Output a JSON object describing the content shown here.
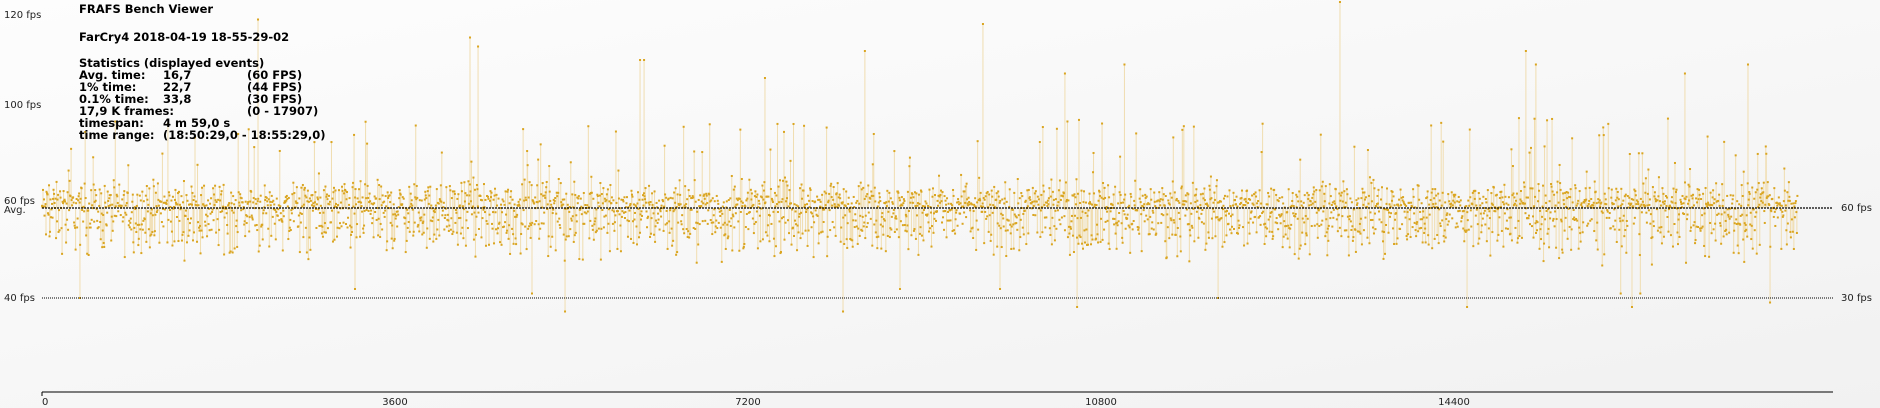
{
  "title": "FRAFS Bench Viewer",
  "run_name": "FarCry4 2018-04-19 18-55-29-02",
  "stats": {
    "heading": "Statistics (displayed events)",
    "rows": [
      {
        "label": "Avg. time:",
        "value": "16,7",
        "extra": "(60 FPS)"
      },
      {
        "label": "1% time:",
        "value": "22,7",
        "extra": "(44 FPS)"
      },
      {
        "label": "0.1% time:",
        "value": "33,8",
        "extra": "(30 FPS)"
      },
      {
        "label": "17,9 K frames:",
        "value": "",
        "extra": "(0 - 17907)"
      },
      {
        "label": "timespan:",
        "value": "4 m 59,0 s",
        "extra": ""
      },
      {
        "label": "time range:",
        "value": "(18:50:29,0 - 18:55:29,0)",
        "extra": ""
      }
    ]
  },
  "chart_data": {
    "type": "scatter",
    "colors": {
      "points": "#DAA520",
      "stems": "#F0DDB0",
      "avg_line": "#000000",
      "ref_line": "#000000"
    },
    "y_ticks_left": [
      "120 fps",
      "100 fps",
      "60 fps",
      "40 fps"
    ],
    "avg_label": "Avg.",
    "y_ticks_right": [
      "60 fps",
      "30 fps"
    ],
    "x_ticks": [
      "0",
      "3600",
      "7200",
      "10800",
      "14400"
    ],
    "x_tick_values": [
      0,
      3600,
      7200,
      10800,
      14400
    ],
    "xlim": [
      0,
      18265
    ],
    "frame_range": [
      0,
      17907
    ],
    "avg_fps": 60,
    "reference_line_fps": 40,
    "typical_band_fps": [
      53,
      70
    ],
    "grid": false,
    "spikes": [
      {
        "frame": 2203,
        "fps": 119
      },
      {
        "frame": 4365,
        "fps": 115
      },
      {
        "frame": 4447,
        "fps": 113
      },
      {
        "frame": 6099,
        "fps": 110
      },
      {
        "frame": 6140,
        "fps": 110
      },
      {
        "frame": 7373,
        "fps": 106
      },
      {
        "frame": 8392,
        "fps": 112
      },
      {
        "frame": 9596,
        "fps": 118
      },
      {
        "frame": 10432,
        "fps": 107
      },
      {
        "frame": 11039,
        "fps": 109
      },
      {
        "frame": 13237,
        "fps": 123
      },
      {
        "frame": 15133,
        "fps": 112
      },
      {
        "frame": 15235,
        "fps": 109
      },
      {
        "frame": 16755,
        "fps": 107
      },
      {
        "frame": 17398,
        "fps": 109
      },
      {
        "frame": 387,
        "fps": 40
      },
      {
        "frame": 3192,
        "fps": 42
      },
      {
        "frame": 4997,
        "fps": 41
      },
      {
        "frame": 5334,
        "fps": 37
      },
      {
        "frame": 8169,
        "fps": 37
      },
      {
        "frame": 8750,
        "fps": 42
      },
      {
        "frame": 9770,
        "fps": 42
      },
      {
        "frame": 10556,
        "fps": 38
      },
      {
        "frame": 11994,
        "fps": 40
      },
      {
        "frame": 14533,
        "fps": 38
      },
      {
        "frame": 16100,
        "fps": 41
      },
      {
        "frame": 16215,
        "fps": 38
      },
      {
        "frame": 16300,
        "fps": 41
      },
      {
        "frame": 17623,
        "fps": 39
      }
    ]
  }
}
